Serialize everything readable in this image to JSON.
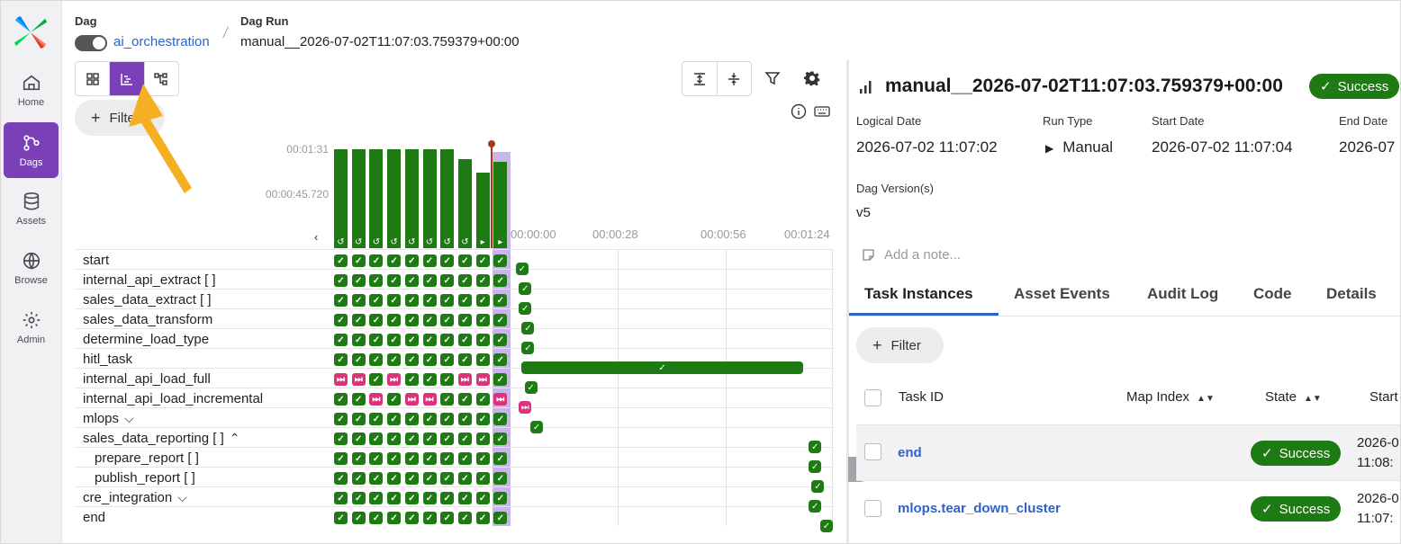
{
  "nav": {
    "items": [
      {
        "label": "Home"
      },
      {
        "label": "Dags"
      },
      {
        "label": "Assets"
      },
      {
        "label": "Browse"
      },
      {
        "label": "Admin"
      }
    ]
  },
  "header": {
    "dag_label": "Dag",
    "dag_name": "ai_orchestration",
    "run_label": "Dag Run",
    "run_name": "manual__2026-07-02T11:07:03.759379+00:00"
  },
  "toolbar": {
    "filter_label": "Filter"
  },
  "grid": {
    "duration_labels": [
      "00:01:31",
      "00:00:45.720"
    ],
    "time_labels": [
      "00:00:00",
      "00:00:28",
      "00:00:56",
      "00:01:24"
    ],
    "tasks": [
      {
        "name": "start",
        "indent": 0,
        "chev": ""
      },
      {
        "name": "internal_api_extract [ ]",
        "indent": 0,
        "chev": ""
      },
      {
        "name": "sales_data_extract [ ]",
        "indent": 0,
        "chev": ""
      },
      {
        "name": "sales_data_transform",
        "indent": 0,
        "chev": ""
      },
      {
        "name": "determine_load_type",
        "indent": 0,
        "chev": ""
      },
      {
        "name": "hitl_task",
        "indent": 0,
        "chev": ""
      },
      {
        "name": "internal_api_load_full",
        "indent": 0,
        "chev": ""
      },
      {
        "name": "internal_api_load_incremental",
        "indent": 0,
        "chev": ""
      },
      {
        "name": "mlops",
        "indent": 0,
        "chev": "down"
      },
      {
        "name": "sales_data_reporting [ ]",
        "indent": 0,
        "chev": "up"
      },
      {
        "name": "prepare_report [ ]",
        "indent": 1,
        "chev": ""
      },
      {
        "name": "publish_report [ ]",
        "indent": 1,
        "chev": ""
      },
      {
        "name": "cre_integration",
        "indent": 0,
        "chev": "down"
      },
      {
        "name": "end",
        "indent": 0,
        "chev": ""
      }
    ],
    "run_bar_heights": [
      1.0,
      1.0,
      1.0,
      1.0,
      1.0,
      1.0,
      1.0,
      0.9,
      0.76,
      0.87
    ],
    "run_bar_icons": [
      "retry",
      "retry",
      "retry",
      "retry",
      "retry",
      "retry",
      "retry",
      "retry",
      "play",
      "play"
    ],
    "cell_states": {
      "internal_api_load_full": [
        "k",
        "k",
        "s",
        "k",
        "s",
        "s",
        "s",
        "k",
        "k",
        "s"
      ],
      "internal_api_load_incremental": [
        "s",
        "s",
        "k",
        "s",
        "k",
        "k",
        "s",
        "s",
        "s",
        "k"
      ]
    },
    "gantt": [
      {
        "row": 0,
        "start": 0.0,
        "end": 0.0
      },
      {
        "row": 1,
        "start": 0.01,
        "end": 0.01
      },
      {
        "row": 2,
        "start": 0.01,
        "end": 0.01
      },
      {
        "row": 3,
        "start": 0.02,
        "end": 0.02
      },
      {
        "row": 4,
        "start": 0.02,
        "end": 0.02
      },
      {
        "row": 5,
        "start": 0.02,
        "end": 0.99
      },
      {
        "row": 6,
        "start": 0.03,
        "end": 0.03
      },
      {
        "row": 7,
        "start": 0.01,
        "end": 0.01
      },
      {
        "row": 8,
        "start": 0.05,
        "end": 0.05
      },
      {
        "row": 9,
        "start": 1.01,
        "end": 1.01
      },
      {
        "row": 10,
        "start": 1.01,
        "end": 1.01
      },
      {
        "row": 11,
        "start": 1.02,
        "end": 1.02
      },
      {
        "row": 12,
        "start": 1.01,
        "end": 1.01
      },
      {
        "row": 13,
        "start": 1.05,
        "end": 1.05
      }
    ]
  },
  "details": {
    "title": "manual__2026-07-02T11:07:03.759379+00:00",
    "status": "Success",
    "logical_date_label": "Logical Date",
    "logical_date": "2026-07-02 11:07:02",
    "run_type_label": "Run Type",
    "run_type": "Manual",
    "start_date_label": "Start Date",
    "start_date": "2026-07-02 11:07:04",
    "end_date_label": "End Date",
    "end_date": "2026-07",
    "dag_version_label": "Dag Version(s)",
    "dag_version": "v5",
    "note_placeholder": "Add a note...",
    "tabs": [
      "Task Instances",
      "Asset Events",
      "Audit Log",
      "Code",
      "Details"
    ],
    "filter_label": "Filter",
    "columns": {
      "task_id": "Task ID",
      "map_index": "Map Index",
      "state": "State",
      "start": "Start"
    },
    "rows": [
      {
        "task_id": "end",
        "state": "Success",
        "start_line1": "2026-0",
        "start_line2": "11:08:"
      },
      {
        "task_id": "mlops.tear_down_cluster",
        "state": "Success",
        "start_line1": "2026-0",
        "start_line2": "11:07:"
      }
    ]
  },
  "colors": {
    "success": "#1e7a12",
    "skipped": "#d9337a",
    "accent": "#7b3fb8",
    "link": "#2d62c8",
    "annotation": "#f5b021"
  }
}
